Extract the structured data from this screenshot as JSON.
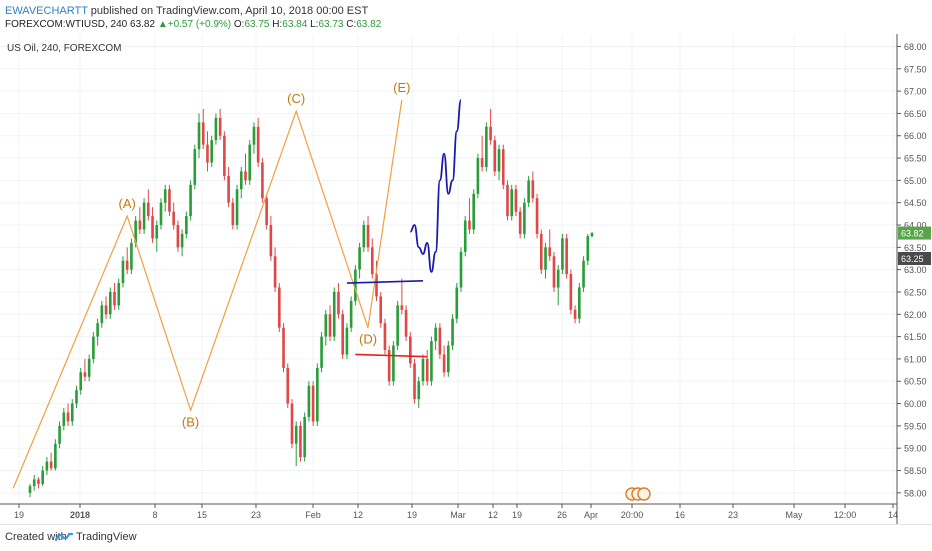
{
  "header": {
    "author": "EWAVECHARTT",
    "published": "published on TradingView.com, April 10, 2018 00:00 EST",
    "symbol": "FOREXCOM:WTIUSD, 240",
    "last": "63.82",
    "change": "+0.57 (+0.9%)",
    "o_label": "O:",
    "o": "63.75",
    "h_label": "H:",
    "h": "63.84",
    "l_label": "L:",
    "l": "63.73",
    "c_label": "C:",
    "c": "63.82"
  },
  "chart_label": "US Oil, 240, FOREXCOM",
  "footer": {
    "created": "Created with",
    "brand": "TradingView"
  },
  "colors": {
    "up": "#2a9d3a",
    "down": "#e04848",
    "wave": "#f0a040",
    "wave_label": "#c07a14",
    "projection": "#1a1aaa",
    "support": "#e02020",
    "last_badge": "#58a64a",
    "price_badge": "#4a4a4a"
  },
  "chart_data": {
    "type": "candlestick",
    "y_ticks": [
      "58.00",
      "58.50",
      "59.00",
      "59.50",
      "60.00",
      "60.50",
      "61.00",
      "61.50",
      "62.00",
      "62.50",
      "63.00",
      "63.50",
      "64.00",
      "64.50",
      "65.00",
      "65.50",
      "66.00",
      "66.50",
      "67.00",
      "67.50",
      "68.00"
    ],
    "ylim": [
      57.75,
      68.1
    ],
    "x_ticks": [
      "19",
      "2018",
      "8",
      "15",
      "23",
      "Feb",
      "12",
      "19",
      "Mar",
      "12",
      "19",
      "26",
      "Apr",
      "20:00",
      "16",
      "23",
      "May",
      "12:00",
      "14"
    ],
    "price_badges": [
      {
        "label": "63.82",
        "value": 63.82,
        "kind": "last"
      },
      {
        "label": "63.25",
        "value": 63.25,
        "kind": "price"
      }
    ],
    "wave_labels": [
      {
        "label": "(A)",
        "value": 64.2
      },
      {
        "label": "(B)",
        "value": 59.85
      },
      {
        "label": "(C)",
        "value": 66.55
      },
      {
        "label": "(D)",
        "value": 61.7
      },
      {
        "label": "(E)",
        "value": 66.8
      }
    ],
    "candles": [
      [
        58.0,
        58.2,
        57.9,
        58.15
      ],
      [
        58.15,
        58.4,
        58.05,
        58.3
      ],
      [
        58.3,
        58.35,
        58.1,
        58.2
      ],
      [
        58.2,
        58.6,
        58.15,
        58.5
      ],
      [
        58.5,
        58.8,
        58.4,
        58.7
      ],
      [
        58.7,
        58.9,
        58.5,
        58.55
      ],
      [
        58.55,
        59.2,
        58.5,
        59.1
      ],
      [
        59.1,
        59.6,
        59.0,
        59.5
      ],
      [
        59.5,
        59.9,
        59.4,
        59.8
      ],
      [
        59.8,
        60.0,
        59.5,
        59.6
      ],
      [
        59.6,
        60.1,
        59.5,
        60.0
      ],
      [
        60.0,
        60.4,
        59.9,
        60.3
      ],
      [
        60.3,
        60.8,
        60.2,
        60.7
      ],
      [
        60.7,
        61.0,
        60.5,
        60.6
      ],
      [
        60.6,
        61.1,
        60.5,
        61.0
      ],
      [
        61.0,
        61.6,
        60.9,
        61.5
      ],
      [
        61.5,
        61.9,
        61.3,
        61.8
      ],
      [
        61.8,
        62.3,
        61.7,
        62.2
      ],
      [
        62.2,
        62.4,
        61.9,
        62.0
      ],
      [
        62.0,
        62.6,
        61.9,
        62.5
      ],
      [
        62.5,
        62.7,
        62.1,
        62.2
      ],
      [
        62.2,
        62.8,
        62.1,
        62.7
      ],
      [
        62.7,
        63.3,
        62.6,
        63.2
      ],
      [
        63.2,
        63.5,
        62.9,
        63.0
      ],
      [
        63.0,
        63.7,
        62.9,
        63.6
      ],
      [
        63.6,
        64.2,
        63.5,
        64.1
      ],
      [
        64.1,
        64.4,
        63.8,
        63.9
      ],
      [
        63.9,
        64.6,
        63.8,
        64.5
      ],
      [
        64.5,
        64.8,
        64.1,
        64.2
      ],
      [
        64.2,
        64.4,
        63.6,
        63.7
      ],
      [
        63.7,
        64.1,
        63.4,
        64.0
      ],
      [
        64.0,
        64.6,
        63.9,
        64.5
      ],
      [
        64.5,
        64.9,
        64.3,
        64.8
      ],
      [
        64.8,
        64.9,
        64.2,
        64.3
      ],
      [
        64.3,
        64.5,
        63.9,
        64.0
      ],
      [
        64.0,
        64.1,
        63.4,
        63.5
      ],
      [
        63.5,
        63.9,
        63.3,
        63.8
      ],
      [
        63.8,
        64.3,
        63.7,
        64.2
      ],
      [
        64.2,
        65.0,
        64.1,
        64.9
      ],
      [
        64.9,
        65.8,
        64.8,
        65.7
      ],
      [
        65.7,
        66.5,
        65.5,
        66.3
      ],
      [
        66.3,
        66.6,
        65.7,
        65.8
      ],
      [
        65.8,
        66.1,
        65.2,
        65.4
      ],
      [
        65.4,
        66.0,
        65.3,
        65.9
      ],
      [
        65.9,
        66.5,
        65.8,
        66.4
      ],
      [
        66.4,
        66.6,
        65.9,
        66.0
      ],
      [
        66.0,
        66.1,
        65.0,
        65.1
      ],
      [
        65.1,
        65.3,
        64.4,
        64.5
      ],
      [
        64.5,
        64.6,
        63.9,
        64.0
      ],
      [
        64.0,
        64.9,
        63.9,
        64.8
      ],
      [
        64.8,
        65.3,
        64.6,
        65.2
      ],
      [
        65.2,
        65.6,
        64.9,
        65.0
      ],
      [
        65.0,
        65.9,
        64.9,
        65.8
      ],
      [
        65.8,
        66.3,
        65.6,
        66.2
      ],
      [
        66.2,
        66.4,
        65.3,
        65.4
      ],
      [
        65.4,
        65.5,
        64.5,
        64.6
      ],
      [
        64.6,
        64.7,
        63.9,
        64.0
      ],
      [
        64.0,
        64.2,
        63.2,
        63.3
      ],
      [
        63.3,
        63.5,
        62.5,
        62.6
      ],
      [
        62.6,
        62.7,
        61.6,
        61.7
      ],
      [
        61.7,
        61.8,
        60.7,
        60.8
      ],
      [
        60.8,
        60.9,
        59.9,
        60.0
      ],
      [
        60.0,
        60.1,
        59.0,
        59.1
      ],
      [
        59.1,
        59.6,
        58.6,
        59.5
      ],
      [
        59.5,
        59.6,
        58.7,
        58.8
      ],
      [
        58.8,
        59.8,
        58.7,
        59.7
      ],
      [
        59.7,
        60.5,
        59.6,
        60.4
      ],
      [
        60.4,
        60.5,
        59.5,
        59.6
      ],
      [
        59.6,
        60.9,
        59.5,
        60.8
      ],
      [
        60.8,
        61.6,
        60.7,
        61.5
      ],
      [
        61.5,
        62.1,
        61.3,
        62.0
      ],
      [
        62.0,
        62.2,
        61.4,
        61.5
      ],
      [
        61.5,
        62.6,
        61.4,
        62.5
      ],
      [
        62.5,
        62.7,
        61.9,
        62.0
      ],
      [
        62.0,
        62.1,
        61.0,
        61.1
      ],
      [
        61.1,
        61.8,
        61.0,
        61.7
      ],
      [
        61.7,
        62.4,
        61.6,
        62.3
      ],
      [
        62.3,
        63.1,
        62.2,
        63.0
      ],
      [
        63.0,
        63.6,
        62.8,
        63.5
      ],
      [
        63.5,
        64.1,
        63.4,
        64.0
      ],
      [
        64.0,
        64.2,
        63.4,
        63.5
      ],
      [
        63.5,
        63.7,
        62.8,
        62.9
      ],
      [
        62.9,
        63.2,
        62.3,
        62.4
      ],
      [
        62.4,
        62.5,
        61.7,
        61.8
      ],
      [
        61.8,
        61.9,
        61.1,
        61.2
      ],
      [
        61.2,
        61.3,
        60.4,
        60.5
      ],
      [
        60.5,
        61.4,
        60.4,
        61.3
      ],
      [
        61.3,
        62.3,
        61.2,
        62.2
      ],
      [
        62.2,
        62.8,
        62.0,
        62.1
      ],
      [
        62.1,
        62.2,
        61.4,
        61.5
      ],
      [
        61.5,
        61.6,
        60.8,
        60.9
      ],
      [
        60.9,
        61.0,
        60.0,
        60.1
      ],
      [
        60.1,
        60.6,
        59.9,
        60.5
      ],
      [
        60.5,
        61.1,
        60.4,
        61.0
      ],
      [
        61.0,
        61.2,
        60.4,
        60.5
      ],
      [
        60.5,
        61.5,
        60.4,
        61.4
      ],
      [
        61.4,
        61.8,
        61.2,
        61.7
      ],
      [
        61.7,
        61.8,
        61.0,
        61.1
      ],
      [
        61.1,
        61.3,
        60.6,
        60.7
      ],
      [
        60.7,
        61.4,
        60.6,
        61.3
      ],
      [
        61.3,
        62.0,
        61.2,
        61.9
      ],
      [
        61.9,
        62.7,
        61.8,
        62.6
      ],
      [
        62.6,
        63.5,
        62.5,
        63.4
      ],
      [
        63.4,
        64.2,
        63.3,
        64.1
      ],
      [
        64.1,
        64.6,
        63.8,
        63.9
      ],
      [
        63.9,
        64.8,
        63.8,
        64.7
      ],
      [
        64.7,
        65.6,
        64.6,
        65.5
      ],
      [
        65.5,
        66.0,
        65.2,
        65.3
      ],
      [
        65.3,
        66.3,
        65.2,
        66.2
      ],
      [
        66.2,
        66.6,
        65.8,
        65.9
      ],
      [
        65.9,
        66.0,
        65.1,
        65.2
      ],
      [
        65.2,
        65.8,
        65.0,
        65.7
      ],
      [
        65.7,
        65.8,
        64.8,
        64.9
      ],
      [
        64.9,
        65.0,
        64.1,
        64.2
      ],
      [
        64.2,
        64.9,
        64.1,
        64.8
      ],
      [
        64.8,
        64.9,
        64.2,
        64.3
      ],
      [
        64.3,
        64.4,
        63.7,
        63.8
      ],
      [
        63.8,
        64.6,
        63.7,
        64.5
      ],
      [
        64.5,
        65.1,
        64.4,
        65.0
      ],
      [
        65.0,
        65.2,
        64.5,
        64.6
      ],
      [
        64.6,
        64.7,
        63.7,
        63.8
      ],
      [
        63.8,
        63.9,
        62.9,
        63.0
      ],
      [
        63.0,
        63.6,
        62.8,
        63.5
      ],
      [
        63.5,
        63.9,
        63.2,
        63.3
      ],
      [
        63.3,
        63.4,
        62.5,
        62.6
      ],
      [
        62.6,
        63.1,
        62.2,
        63.0
      ],
      [
        63.0,
        63.8,
        62.9,
        63.7
      ],
      [
        63.7,
        63.8,
        62.8,
        62.9
      ],
      [
        62.9,
        63.0,
        62.0,
        62.1
      ],
      [
        62.1,
        62.2,
        61.8,
        61.9
      ],
      [
        61.9,
        62.7,
        61.8,
        62.6
      ],
      [
        62.6,
        63.3,
        62.5,
        63.2
      ],
      [
        63.2,
        63.8,
        63.1,
        63.75
      ],
      [
        63.75,
        63.84,
        63.73,
        63.82
      ]
    ],
    "wave_path": [
      [
        -4,
        58.1
      ],
      [
        23,
        64.2
      ],
      [
        38,
        59.85
      ],
      [
        63,
        66.55
      ],
      [
        80,
        61.7
      ],
      [
        88,
        66.8
      ]
    ],
    "projection": [
      [
        90,
        63.85
      ],
      [
        91,
        64.0
      ],
      [
        92,
        63.5
      ],
      [
        93,
        63.35
      ],
      [
        94,
        63.6
      ],
      [
        95,
        62.95
      ],
      [
        96,
        63.4
      ],
      [
        97,
        65.0
      ],
      [
        98,
        65.6
      ],
      [
        99,
        64.7
      ],
      [
        100,
        65.0
      ],
      [
        101,
        66.1
      ],
      [
        102,
        66.8
      ]
    ],
    "support_lines": [
      {
        "from": [
          75,
          62.7
        ],
        "to": [
          93,
          62.75
        ],
        "color": "blue"
      },
      {
        "from": [
          77,
          61.1
        ],
        "to": [
          94,
          61.05
        ],
        "color": "red"
      }
    ]
  }
}
